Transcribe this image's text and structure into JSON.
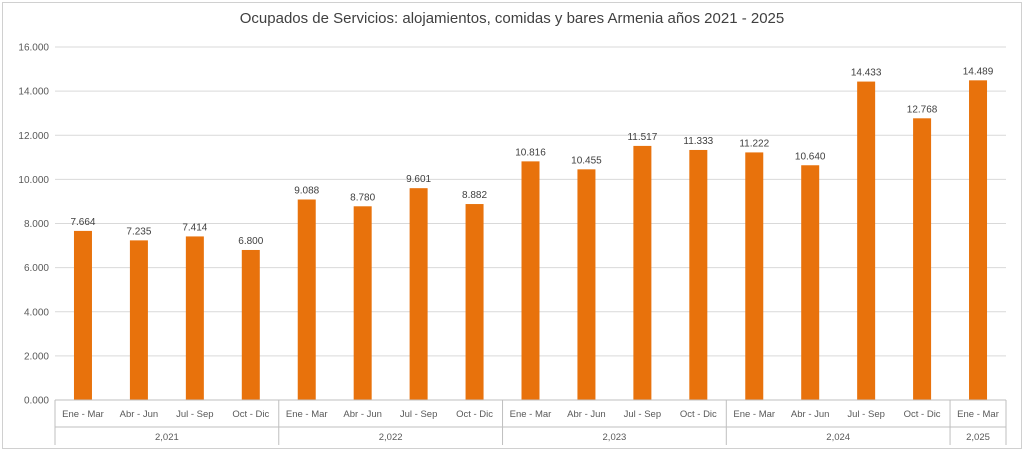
{
  "chart_data": {
    "type": "bar",
    "title": "Ocupados de Servicios: alojamientos, comidas y bares Armenia años 2021 - 2025",
    "xlabel": "",
    "ylabel": "",
    "ylim": [
      0,
      16000
    ],
    "yticks": [
      "0.000",
      "2.000",
      "4.000",
      "6.000",
      "8.000",
      "10.000",
      "12.000",
      "14.000",
      "16.000"
    ],
    "grid": true,
    "legend": "none",
    "bar_color": "#E8720C",
    "categories": [
      "Ene - Mar",
      "Abr - Jun",
      "Jul - Sep",
      "Oct - Dic",
      "Ene - Mar",
      "Abr - Jun",
      "Jul - Sep",
      "Oct - Dic",
      "Ene - Mar",
      "Abr - Jun",
      "Jul - Sep",
      "Oct - Dic",
      "Ene - Mar",
      "Abr - Jun",
      "Jul - Sep",
      "Oct - Dic",
      "Ene - Mar"
    ],
    "values": [
      7664,
      7235,
      7414,
      6800,
      9088,
      8780,
      9601,
      8882,
      10816,
      10455,
      11517,
      11333,
      11222,
      10640,
      14433,
      12768,
      14489
    ],
    "value_labels": [
      "7.664",
      "7.235",
      "7.414",
      "6.800",
      "9.088",
      "8.780",
      "9.601",
      "8.882",
      "10.816",
      "10.455",
      "11.517",
      "11.333",
      "11.222",
      "10.640",
      "14.433",
      "12.768",
      "14.489"
    ],
    "groups": [
      {
        "label": "2,021",
        "count": 4
      },
      {
        "label": "2,022",
        "count": 4
      },
      {
        "label": "2,023",
        "count": 4
      },
      {
        "label": "2,024",
        "count": 4
      },
      {
        "label": "2,025",
        "count": 1
      }
    ]
  }
}
